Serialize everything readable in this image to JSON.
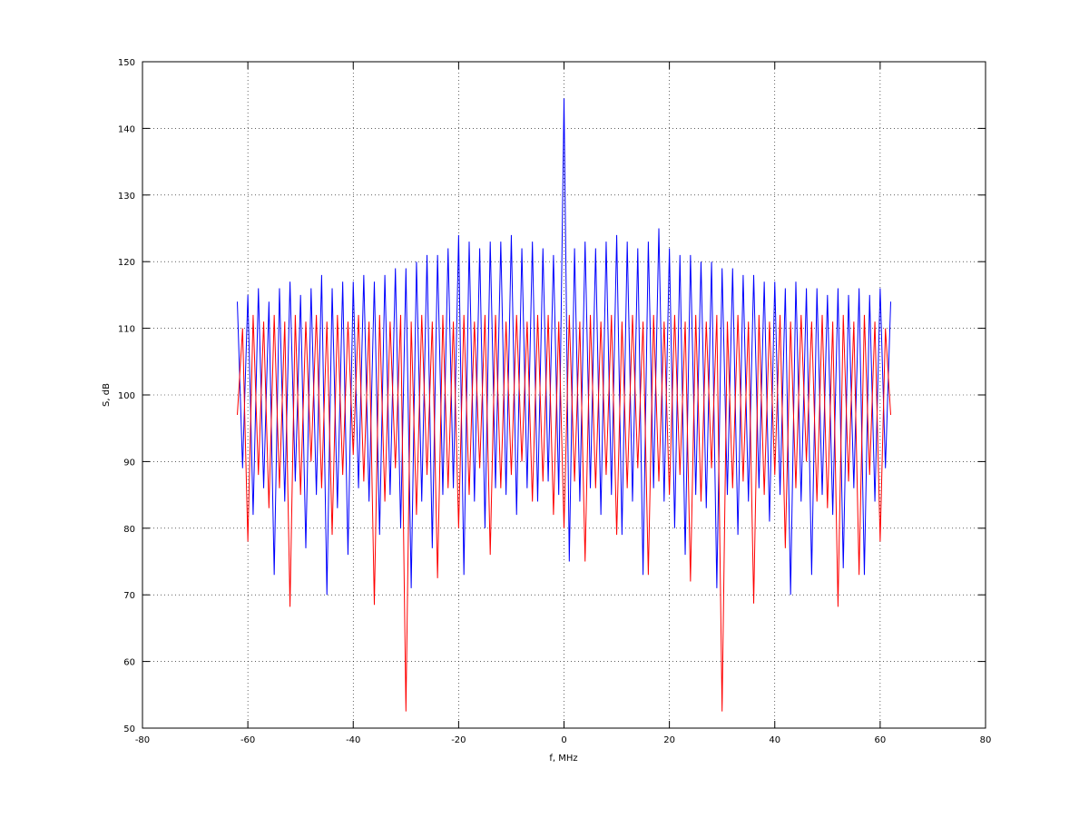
{
  "chart_data": {
    "type": "line",
    "xlabel": "f, MHz",
    "ylabel": "S, dB",
    "x": [
      -62,
      -61,
      -60,
      -59,
      -58,
      -57,
      -56,
      -55,
      -54,
      -53,
      -52,
      -51,
      -50,
      -49,
      -48,
      -47,
      -46,
      -45,
      -44,
      -43,
      -42,
      -41,
      -40,
      -39,
      -38,
      -37,
      -36,
      -35,
      -34,
      -33,
      -32,
      -31,
      -30,
      -29,
      -28,
      -27,
      -26,
      -25,
      -24,
      -23,
      -22,
      -21,
      -20,
      -19,
      -18,
      -17,
      -16,
      -15,
      -14,
      -13,
      -12,
      -11,
      -10,
      -9,
      -8,
      -7,
      -6,
      -5,
      -4,
      -3,
      -2,
      -1,
      0,
      1,
      2,
      3,
      4,
      5,
      6,
      7,
      8,
      9,
      10,
      11,
      12,
      13,
      14,
      15,
      16,
      17,
      18,
      19,
      20,
      21,
      22,
      23,
      24,
      25,
      26,
      27,
      28,
      29,
      30,
      31,
      32,
      33,
      34,
      35,
      36,
      37,
      38,
      39,
      40,
      41,
      42,
      43,
      44,
      45,
      46,
      47,
      48,
      49,
      50,
      51,
      52,
      53,
      54,
      55,
      56,
      57,
      58,
      59,
      60,
      61,
      62
    ],
    "series": [
      {
        "color": "#0000ff",
        "values": [
          114,
          89,
          115,
          82,
          116,
          86,
          114,
          73,
          116,
          84,
          117,
          87,
          115,
          77,
          116,
          85,
          118,
          70,
          116,
          83,
          117,
          76,
          117,
          86,
          118,
          84,
          117,
          79,
          118,
          85,
          119,
          80,
          119,
          71,
          120,
          84,
          121,
          77,
          121,
          85,
          122,
          86,
          124,
          73,
          123,
          84,
          122,
          80,
          123,
          86,
          123,
          85,
          124,
          82,
          122,
          86,
          123,
          84,
          122,
          87,
          121,
          85,
          144.5,
          75,
          122,
          84,
          123,
          86,
          122,
          82,
          123,
          85,
          124,
          79,
          123,
          84,
          122,
          73,
          123,
          86,
          125,
          84,
          122,
          80,
          121,
          76,
          121,
          85,
          120,
          83,
          120,
          71,
          119,
          85,
          119,
          79,
          118,
          84,
          118,
          86,
          117,
          81,
          117,
          85,
          116,
          70,
          117,
          84,
          116,
          73,
          116,
          85,
          115,
          82,
          116,
          74,
          115,
          86,
          116,
          73,
          115,
          84,
          116,
          89,
          114
        ]
      },
      {
        "color": "#ff0000",
        "values": [
          97,
          110,
          78,
          112,
          88,
          111,
          83,
          112,
          86,
          111,
          68.2,
          112,
          85,
          111,
          90,
          112,
          86,
          111,
          79,
          112,
          88,
          111,
          91,
          112,
          87,
          111,
          68.5,
          112,
          84,
          111,
          89,
          112,
          52.5,
          111,
          82,
          112,
          88,
          111,
          72.5,
          112,
          86,
          111,
          80,
          112,
          85,
          111,
          89,
          112,
          76,
          112,
          86,
          111,
          88,
          112,
          90,
          111,
          84,
          112,
          87,
          112,
          82,
          111,
          80,
          112,
          87,
          111,
          75,
          112,
          86,
          111,
          88,
          112,
          79,
          111,
          86,
          112,
          89,
          111,
          73,
          112,
          87,
          111,
          85,
          112,
          88,
          111,
          72,
          112,
          84,
          111,
          89,
          112,
          52.5,
          111,
          86,
          112,
          87,
          111,
          68.7,
          112,
          85,
          111,
          88,
          112,
          77,
          111,
          86,
          112,
          90,
          111,
          84,
          112,
          83,
          111,
          68.2,
          112,
          87,
          111,
          73,
          112,
          88,
          111,
          78,
          110,
          97
        ]
      }
    ],
    "xlim": [
      -80,
      80
    ],
    "xticks": [
      -80,
      -60,
      -40,
      -20,
      0,
      20,
      40,
      60,
      80
    ],
    "ylim": [
      50,
      150
    ],
    "yticks": [
      50,
      60,
      70,
      80,
      90,
      100,
      110,
      120,
      130,
      140,
      150
    ],
    "grid": true
  }
}
